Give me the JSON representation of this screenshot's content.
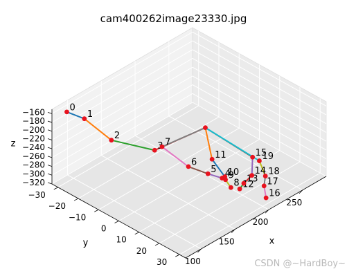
{
  "title": "cam400262image23330.jpg",
  "watermark": "CSDN @~HardBoy~",
  "colors": {
    "point": "#e8131f",
    "tab10": [
      "#1f77b4",
      "#ff7f0e",
      "#2ca02c",
      "#d62728",
      "#9467bd",
      "#8c564b",
      "#e377c2",
      "#7f7f7f",
      "#bcbd22",
      "#17becf"
    ]
  },
  "chart_data": {
    "type": "scatter",
    "projection": "3d",
    "title": "cam400262image23330.jpg",
    "xlabel": "x",
    "ylabel": "y",
    "zlabel": "z",
    "xticks": [
      "100",
      "150",
      "200",
      "250"
    ],
    "yticks": [
      "−30",
      "−20",
      "−10",
      "0",
      "10",
      "20",
      "30"
    ],
    "zticks": [
      "−160",
      "−180",
      "−200",
      "−220",
      "−240",
      "−260",
      "−280",
      "−300",
      "−320"
    ],
    "xlim": [
      77,
      285
    ],
    "ylim": [
      -33,
      33
    ],
    "zlim": [
      -320,
      -150
    ],
    "grid": true,
    "points": [
      {
        "label": "0",
        "x": 90,
        "y": -30,
        "z": -160
      },
      {
        "label": "1",
        "x": 107,
        "y": -27,
        "z": -183
      },
      {
        "label": "2",
        "x": 114,
        "y": -16,
        "z": -210
      },
      {
        "label": "3",
        "x": 151,
        "y": -7,
        "z": -243
      },
      {
        "label": "4",
        "x": 137,
        "y": 31,
        "z": -197
      },
      {
        "label": "5",
        "x": 137,
        "y": 24,
        "z": -205
      },
      {
        "label": "6",
        "x": 138,
        "y": 14,
        "z": -215
      },
      {
        "label": "7",
        "x": 150,
        "y": -3,
        "z": -224
      },
      {
        "label": "8",
        "x": 150,
        "y": 31,
        "z": -230
      },
      {
        "label": "9",
        "x": 154,
        "y": 27,
        "z": -226
      },
      {
        "label": "10",
        "x": 162,
        "y": 24,
        "z": -234
      },
      {
        "label": "11",
        "x": 179,
        "y": 12,
        "z": -240
      },
      {
        "label": "12",
        "x": 166,
        "y": 30,
        "z": -250
      },
      {
        "label": "13",
        "x": 175,
        "y": 29,
        "z": -248
      },
      {
        "label": "14",
        "x": 193,
        "y": 27,
        "z": -251
      },
      {
        "label": "15",
        "x": 215,
        "y": 20,
        "z": -247
      },
      {
        "label": "16",
        "x": 202,
        "y": 31,
        "z": -300
      },
      {
        "label": "17",
        "x": 211,
        "y": 27,
        "z": -291
      },
      {
        "label": "18",
        "x": 222,
        "y": 24,
        "z": -286
      },
      {
        "label": "19",
        "x": 234,
        "y": 17,
        "z": -280
      }
    ],
    "segments": [
      {
        "from": 0,
        "to": 1,
        "color": "#1f77b4"
      },
      {
        "from": 1,
        "to": 2,
        "color": "#ff7f0e"
      },
      {
        "from": 2,
        "to": 3,
        "color": "#2ca02c"
      },
      {
        "from": 3,
        "to": "W",
        "color": "#d62728"
      },
      {
        "from": 4,
        "to": 5,
        "color": "#9467bd"
      },
      {
        "from": 5,
        "to": 6,
        "color": "#8c564b"
      },
      {
        "from": 6,
        "to": 7,
        "color": "#e377c2"
      },
      {
        "from": 7,
        "to": "W",
        "color": "#7f7f7f"
      },
      {
        "from": 8,
        "to": 9,
        "color": "#bcbd22"
      },
      {
        "from": 9,
        "to": 10,
        "color": "#17becf"
      },
      {
        "from": 10,
        "to": 11,
        "color": "#1f77b4"
      },
      {
        "from": 11,
        "to": "W",
        "color": "#ff7f0e"
      },
      {
        "from": 12,
        "to": 13,
        "color": "#2ca02c"
      },
      {
        "from": 13,
        "to": 14,
        "color": "#d62728"
      },
      {
        "from": 14,
        "to": 15,
        "color": "#9467bd"
      },
      {
        "from": 15,
        "to": "W",
        "color": "#8c564b"
      },
      {
        "from": 16,
        "to": 17,
        "color": "#e377c2"
      },
      {
        "from": 17,
        "to": 18,
        "color": "#7f7f7f"
      },
      {
        "from": 18,
        "to": 19,
        "color": "#bcbd22"
      },
      {
        "from": 19,
        "to": "W",
        "color": "#17becf"
      }
    ],
    "wrist": {
      "x": 244,
      "y": -13,
      "z": -290
    }
  }
}
